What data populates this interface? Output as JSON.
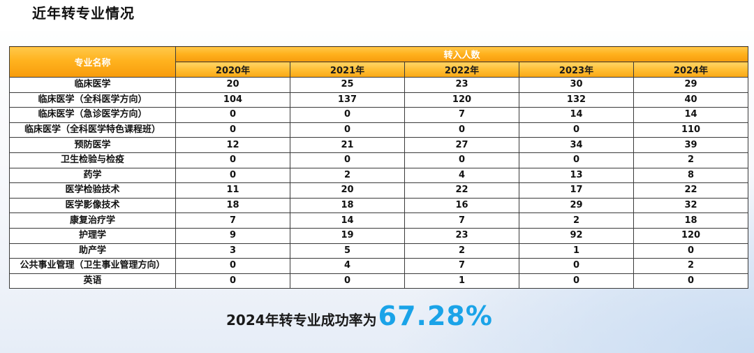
{
  "page": {
    "title": "近年转专业情况"
  },
  "table": {
    "major_header": "专业名称",
    "group_header": "转入人数",
    "years": [
      "2020年",
      "2021年",
      "2022年",
      "2023年",
      "2024年"
    ],
    "rows": [
      {
        "major": "临床医学",
        "values": [
          "20",
          "25",
          "23",
          "30",
          "29"
        ]
      },
      {
        "major": "临床医学（全科医学方向）",
        "values": [
          "104",
          "137",
          "120",
          "132",
          "40"
        ]
      },
      {
        "major": "临床医学（急诊医学方向）",
        "values": [
          "0",
          "0",
          "7",
          "14",
          "14"
        ]
      },
      {
        "major": "临床医学（全科医学特色课程班）",
        "values": [
          "0",
          "0",
          "0",
          "0",
          "110"
        ]
      },
      {
        "major": "预防医学",
        "values": [
          "12",
          "21",
          "27",
          "34",
          "39"
        ]
      },
      {
        "major": "卫生检验与检疫",
        "values": [
          "0",
          "0",
          "0",
          "0",
          "2"
        ]
      },
      {
        "major": "药学",
        "values": [
          "0",
          "2",
          "4",
          "13",
          "8"
        ]
      },
      {
        "major": "医学检验技术",
        "values": [
          "11",
          "20",
          "22",
          "17",
          "22"
        ]
      },
      {
        "major": "医学影像技术",
        "values": [
          "18",
          "18",
          "16",
          "29",
          "32"
        ]
      },
      {
        "major": "康复治疗学",
        "values": [
          "7",
          "14",
          "7",
          "2",
          "18"
        ]
      },
      {
        "major": "护理学",
        "values": [
          "9",
          "19",
          "23",
          "92",
          "120"
        ]
      },
      {
        "major": "助产学",
        "values": [
          "3",
          "5",
          "2",
          "1",
          "0"
        ]
      },
      {
        "major": "公共事业管理（卫生事业管理方向）",
        "values": [
          "0",
          "4",
          "7",
          "0",
          "2"
        ]
      },
      {
        "major": "英语",
        "values": [
          "0",
          "0",
          "1",
          "0",
          "0"
        ]
      }
    ]
  },
  "summary": {
    "label": "2024年转专业成功率为",
    "value": "67.28%"
  },
  "colors": {
    "header_orange": "#ffb21e",
    "accent_blue": "#1aa3e8"
  }
}
